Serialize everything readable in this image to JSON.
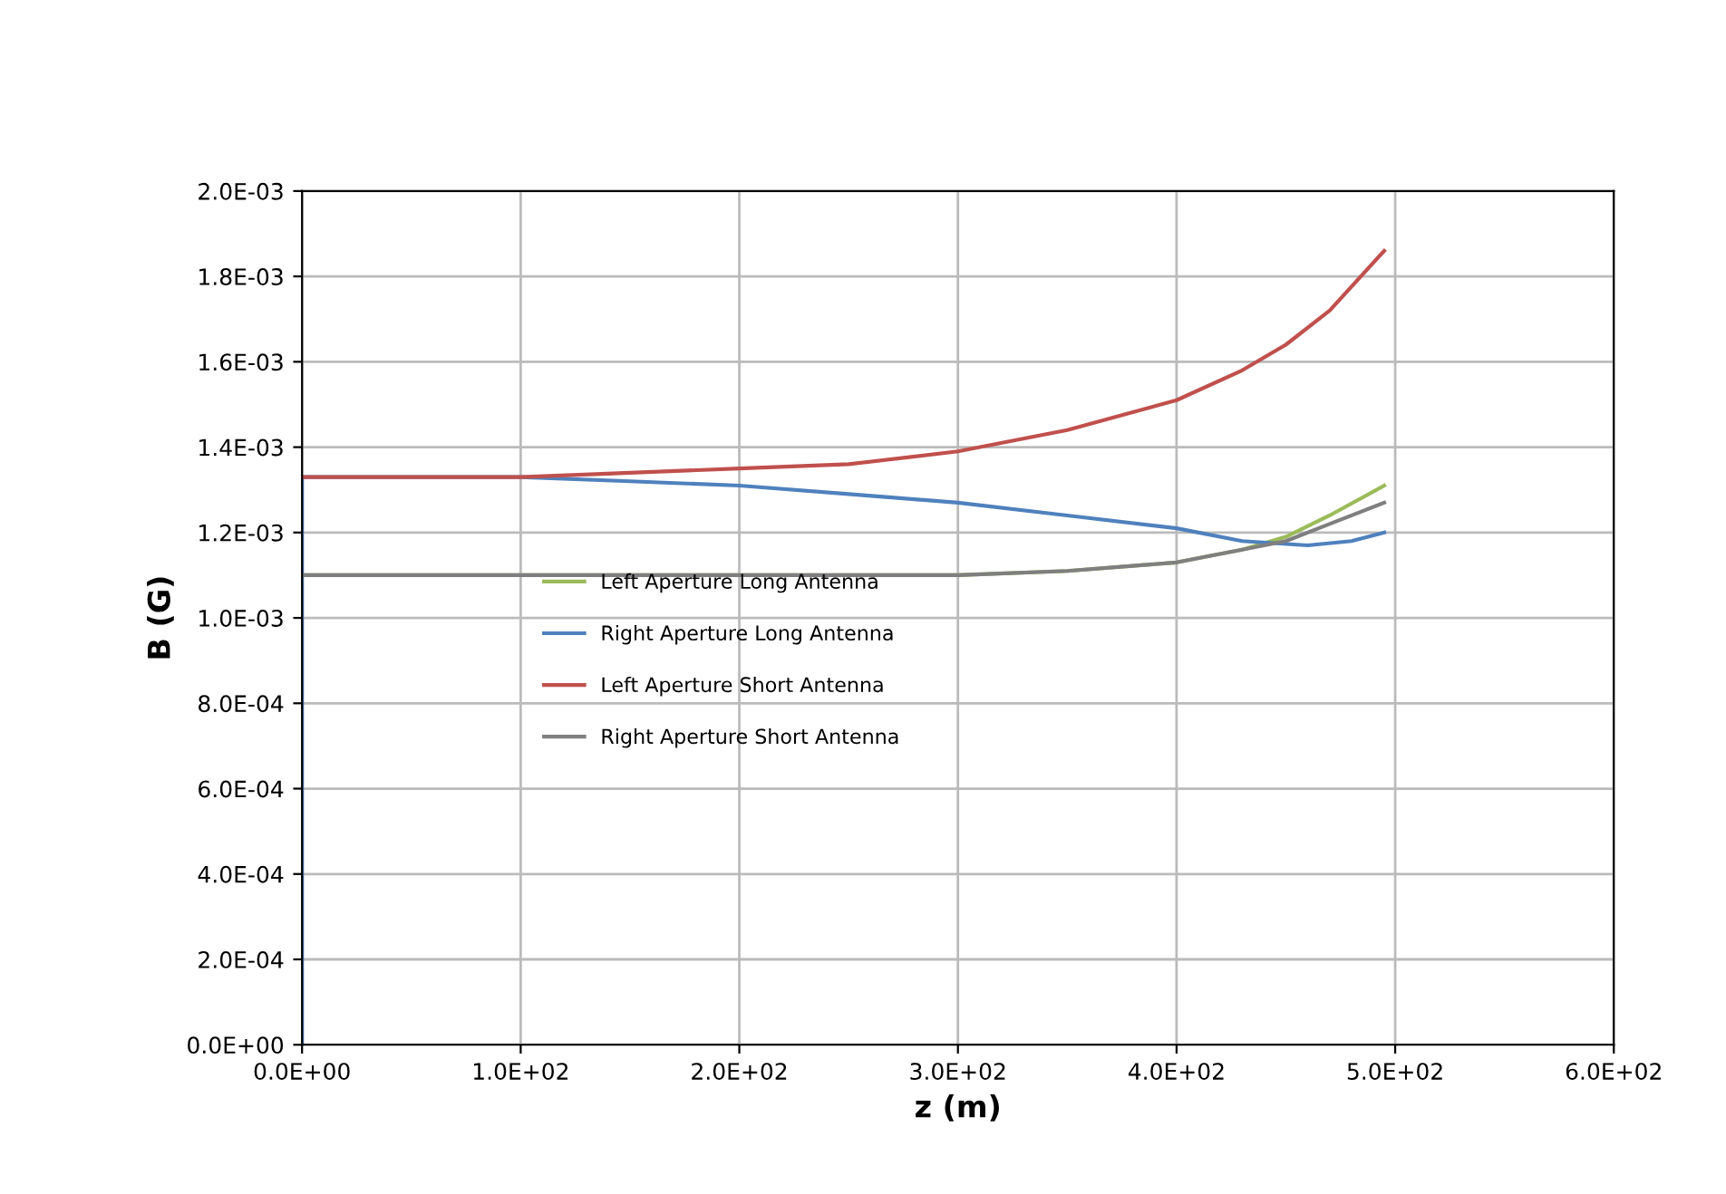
{
  "chart_data": {
    "type": "line",
    "xlabel": "z (m)",
    "ylabel": "B (G)",
    "grid": true,
    "legend": "center",
    "marker": "none",
    "line_style": "solid",
    "xlim": [
      0,
      600
    ],
    "ylim": [
      0,
      0.002
    ],
    "xticks": [
      {
        "value": 0,
        "label": "0.0E+00"
      },
      {
        "value": 100,
        "label": "1.0E+02"
      },
      {
        "value": 200,
        "label": "2.0E+02"
      },
      {
        "value": 300,
        "label": "3.0E+02"
      },
      {
        "value": 400,
        "label": "4.0E+02"
      },
      {
        "value": 500,
        "label": "5.0E+02"
      },
      {
        "value": 600,
        "label": "6.0E+02"
      }
    ],
    "yticks": [
      {
        "value": 0,
        "label": "0.0E+00"
      },
      {
        "value": 0.0002,
        "label": "2.0E-04"
      },
      {
        "value": 0.0004,
        "label": "4.0E-04"
      },
      {
        "value": 0.0006,
        "label": "6.0E-04"
      },
      {
        "value": 0.0008,
        "label": "8.0E-04"
      },
      {
        "value": 0.001,
        "label": "1.0E-03"
      },
      {
        "value": 0.0012,
        "label": "1.2E-03"
      },
      {
        "value": 0.0014,
        "label": "1.4E-03"
      },
      {
        "value": 0.0016,
        "label": "1.6E-03"
      },
      {
        "value": 0.0018,
        "label": "1.8E-03"
      },
      {
        "value": 0.002,
        "label": "2.0E-03"
      }
    ],
    "series": [
      {
        "name": "Left Aperture Long Antenna",
        "color": "#9bbb59",
        "x": [
          0,
          100,
          200,
          250,
          300,
          350,
          400,
          430,
          450,
          470,
          495
        ],
        "values": [
          0.0011,
          0.0011,
          0.0011,
          0.0011,
          0.0011,
          0.00111,
          0.00113,
          0.00116,
          0.00119,
          0.00124,
          0.00131
        ]
      },
      {
        "name": "Right Aperture Long Antenna",
        "color": "#4f81bd",
        "x": [
          0,
          0,
          50,
          100,
          150,
          200,
          250,
          300,
          350,
          400,
          430,
          460,
          480,
          495
        ],
        "values": [
          0,
          0.00133,
          0.00133,
          0.00133,
          0.00132,
          0.00131,
          0.00129,
          0.00127,
          0.00124,
          0.00121,
          0.00118,
          0.00117,
          0.00118,
          0.0012
        ]
      },
      {
        "name": "Left Aperture Short Antenna",
        "color": "#c0504d",
        "x": [
          0,
          100,
          150,
          200,
          250,
          300,
          350,
          400,
          430,
          450,
          470,
          495
        ],
        "values": [
          0.00133,
          0.00133,
          0.00134,
          0.00135,
          0.00136,
          0.00139,
          0.00144,
          0.00151,
          0.00158,
          0.00164,
          0.00172,
          0.00186
        ]
      },
      {
        "name": "Right Aperture Short Antenna",
        "color": "#7f7f7f",
        "x": [
          0,
          100,
          200,
          250,
          300,
          350,
          400,
          430,
          450,
          470,
          495
        ],
        "values": [
          0.0011,
          0.0011,
          0.0011,
          0.0011,
          0.0011,
          0.00111,
          0.00113,
          0.00116,
          0.00118,
          0.00122,
          0.00127
        ]
      }
    ]
  }
}
